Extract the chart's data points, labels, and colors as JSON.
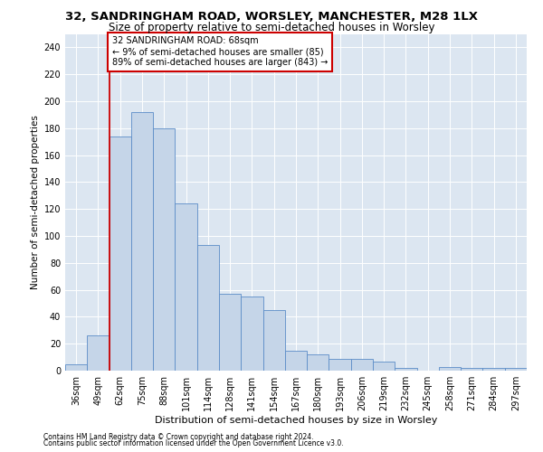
{
  "title1": "32, SANDRINGHAM ROAD, WORSLEY, MANCHESTER, M28 1LX",
  "title2": "Size of property relative to semi-detached houses in Worsley",
  "xlabel": "Distribution of semi-detached houses by size in Worsley",
  "ylabel": "Number of semi-detached properties",
  "footnote1": "Contains HM Land Registry data © Crown copyright and database right 2024.",
  "footnote2": "Contains public sector information licensed under the Open Government Licence v3.0.",
  "categories": [
    "36sqm",
    "49sqm",
    "62sqm",
    "75sqm",
    "88sqm",
    "101sqm",
    "114sqm",
    "128sqm",
    "141sqm",
    "154sqm",
    "167sqm",
    "180sqm",
    "193sqm",
    "206sqm",
    "219sqm",
    "232sqm",
    "245sqm",
    "258sqm",
    "271sqm",
    "284sqm",
    "297sqm"
  ],
  "values": [
    5,
    26,
    174,
    192,
    180,
    124,
    93,
    57,
    55,
    45,
    15,
    12,
    9,
    9,
    7,
    2,
    0,
    3,
    2,
    2,
    2
  ],
  "bar_color": "#c5d5e8",
  "bar_edge_color": "#5b8cc8",
  "annotation_text": "32 SANDRINGHAM ROAD: 68sqm\n← 9% of semi-detached houses are smaller (85)\n89% of semi-detached houses are larger (843) →",
  "annotation_box_color": "#ffffff",
  "annotation_box_edge": "#cc0000",
  "vline_color": "#cc0000",
  "vline_x": 1.5,
  "ylim": [
    0,
    250
  ],
  "yticks": [
    0,
    20,
    40,
    60,
    80,
    100,
    120,
    140,
    160,
    180,
    200,
    220,
    240
  ],
  "plot_bg_color": "#dce6f1",
  "grid_color": "#ffffff",
  "title1_fontsize": 9.5,
  "title2_fontsize": 8.5,
  "xlabel_fontsize": 8,
  "ylabel_fontsize": 7.5,
  "tick_fontsize": 7,
  "annot_fontsize": 7,
  "footnote_fontsize": 5.5
}
